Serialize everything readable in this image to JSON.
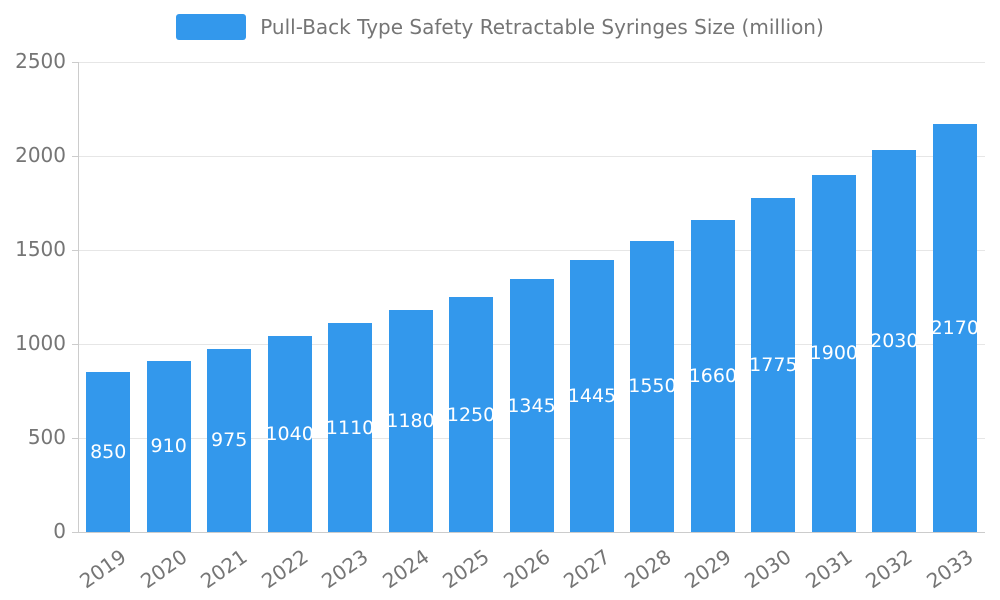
{
  "legend": {
    "label": "Pull-Back Type Safety Retractable Syringes Size (million)"
  },
  "colors": {
    "bar": "#3398ec",
    "axis_text": "#757575",
    "grid": "#e6e6e6",
    "axis_line": "#cccccc",
    "value_label": "#ffffff",
    "background": "#ffffff"
  },
  "chart_data": {
    "type": "bar",
    "title": "Pull-Back Type Safety Retractable Syringes Size (million)",
    "categories": [
      "2019",
      "2020",
      "2021",
      "2022",
      "2023",
      "2024",
      "2025",
      "2026",
      "2027",
      "2028",
      "2029",
      "2030",
      "2031",
      "2032",
      "2033"
    ],
    "values": [
      850,
      910,
      975,
      1040,
      1110,
      1180,
      1250,
      1345,
      1445,
      1550,
      1660,
      1775,
      1900,
      2030,
      2170
    ],
    "xlabel": "",
    "ylabel": "",
    "ylim": [
      0,
      2500
    ],
    "yticks": [
      0,
      500,
      1000,
      1500,
      2000,
      2500
    ],
    "grid": true,
    "legend_position": "top",
    "value_labels": "inside-center",
    "bar_color": "#3398ec"
  }
}
